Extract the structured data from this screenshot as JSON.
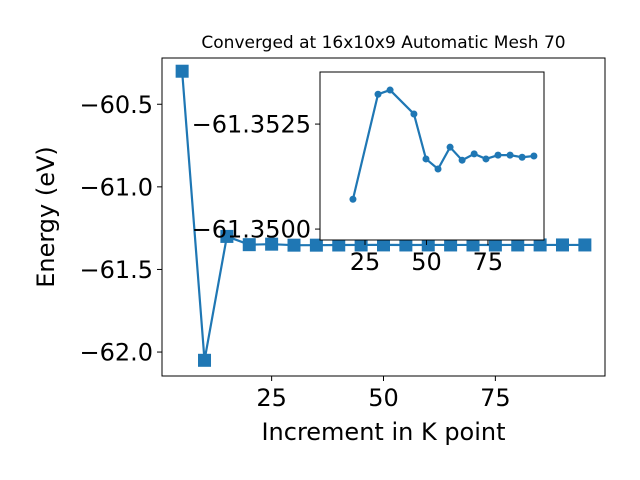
{
  "chart_data": [
    {
      "type": "line",
      "title": "Converged at 16x10x9 Automatic Mesh 70",
      "xlabel": "Increment in K point",
      "ylabel": "Energy (eV)",
      "color": "#1f77b4",
      "marker": "square",
      "x": [
        5,
        10,
        15,
        20,
        25,
        30,
        35,
        40,
        45,
        50,
        55,
        60,
        65,
        70,
        75,
        80,
        85,
        90,
        95
      ],
      "values": [
        -60.3,
        -62.05,
        -61.3,
        -61.35,
        -61.347,
        -61.353,
        -61.353,
        -61.352,
        -61.3517,
        -61.3514,
        -61.3518,
        -61.3516,
        -61.3517,
        -61.3517,
        -61.3518,
        -61.3517,
        -61.3517,
        -61.3517,
        -61.3517
      ],
      "xlim": [
        0.5,
        99.5
      ],
      "ylim": [
        -62.145,
        -60.22
      ],
      "xticks": [
        25,
        50,
        75
      ],
      "yticks": [
        {
          "value": -60.5,
          "label": "−60.5"
        },
        {
          "value": -61.0,
          "label": "−61.0"
        },
        {
          "value": -61.5,
          "label": "−61.5"
        },
        {
          "value": -62.0,
          "label": "−62.0"
        }
      ]
    },
    {
      "type": "line",
      "color": "#1f77b4",
      "marker": "circle",
      "x": [
        20.1,
        30.3,
        35.2,
        44.9,
        49.8,
        54.7,
        59.6,
        64.5,
        69.4,
        74.2,
        79.1,
        84,
        88.9,
        93.7
      ],
      "values": [
        -61.35071,
        -61.35321,
        -61.35331,
        -61.35274,
        -61.35167,
        -61.35143,
        -61.35195,
        -61.35164,
        -61.35179,
        -61.35167,
        -61.35176,
        -61.35176,
        -61.35171,
        -61.35174
      ],
      "xlim": [
        6.7,
        97.8
      ],
      "ylim": [
        -61.34974,
        -61.35374
      ],
      "xticks": [
        25,
        50,
        75
      ],
      "yticks": [
        {
          "value": -61.3525,
          "label": "−61.3525"
        },
        {
          "value": -61.35,
          "label": "−61.3500"
        }
      ]
    }
  ]
}
